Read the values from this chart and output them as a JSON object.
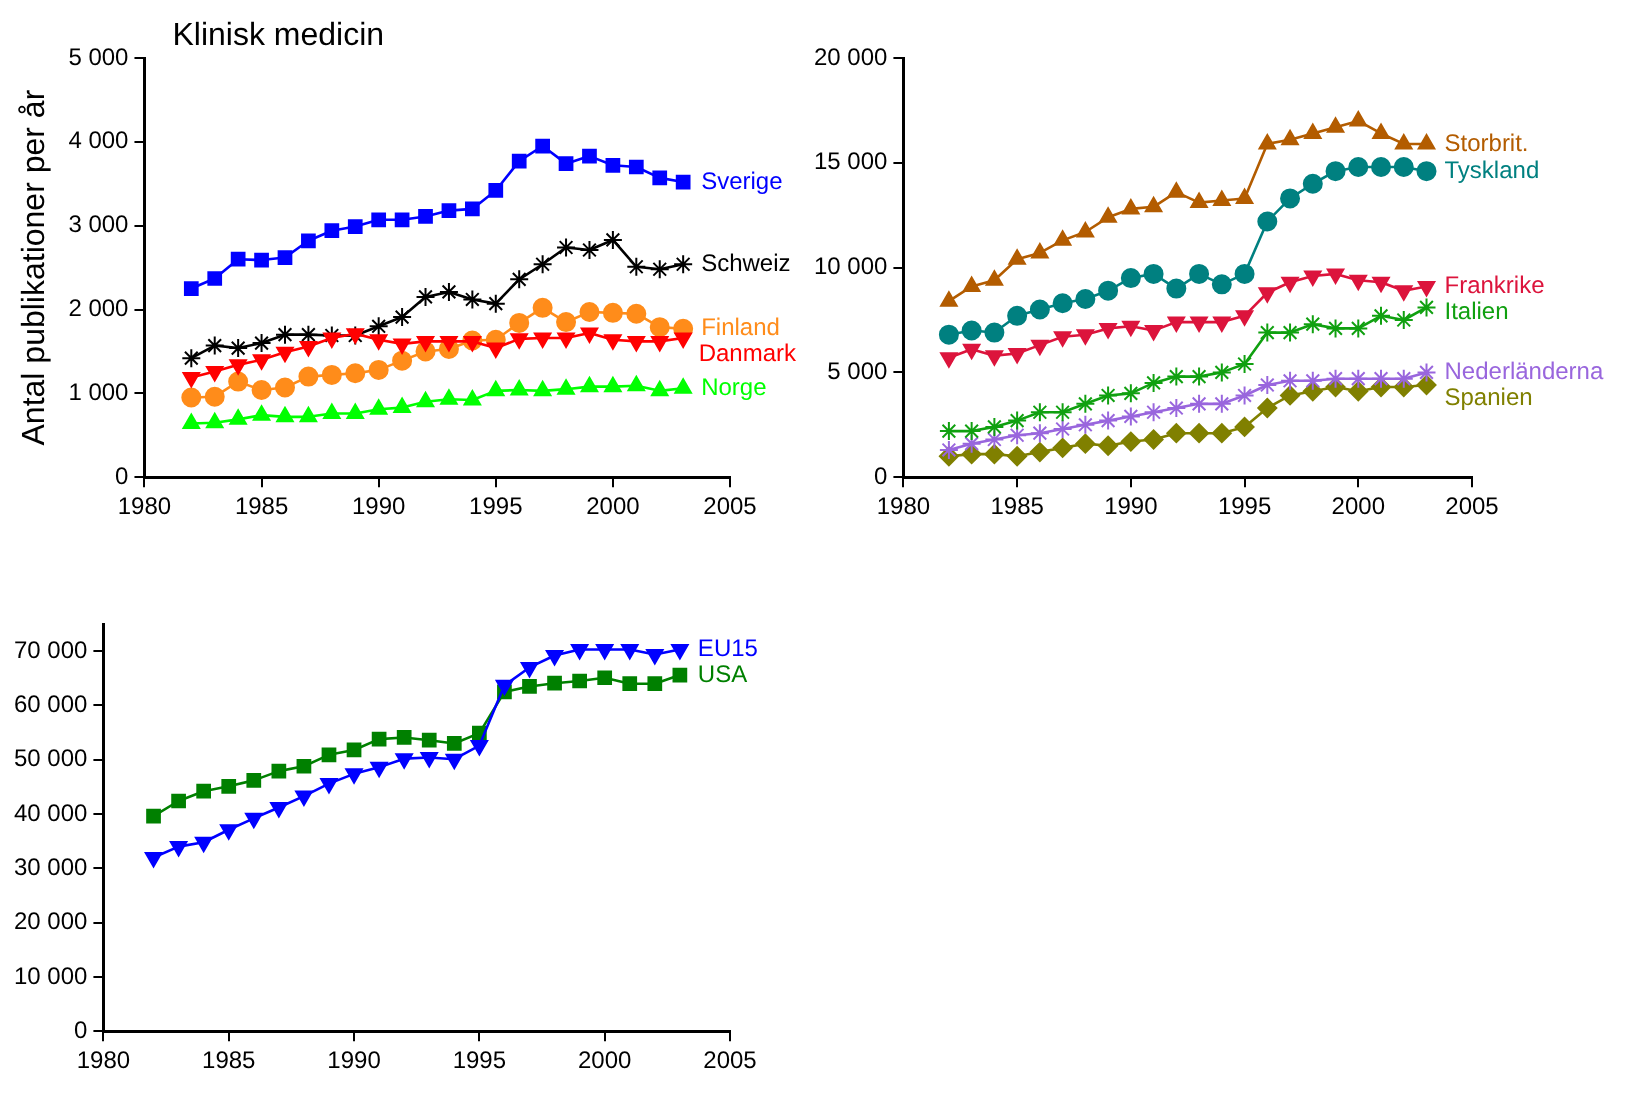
{
  "chart_data": [
    {
      "type": "line",
      "title": "Klinisk medicin",
      "ylabel": "Antal publikationer per år",
      "x": [
        1982,
        1983,
        1984,
        1985,
        1986,
        1987,
        1988,
        1989,
        1990,
        1991,
        1992,
        1993,
        1994,
        1995,
        1996,
        1997,
        1998,
        1999,
        2000,
        2001,
        2002,
        2003
      ],
      "xlim": [
        1980,
        2005
      ],
      "xticks": [
        1980,
        1985,
        1990,
        1995,
        2000,
        2005
      ],
      "ylim": [
        0,
        5000
      ],
      "yticks": [
        {
          "value": 0,
          "label": "0"
        },
        {
          "value": 1000,
          "label": "1 000"
        },
        {
          "value": 2000,
          "label": "2 000"
        },
        {
          "value": 3000,
          "label": "3 000"
        },
        {
          "value": 4000,
          "label": "4 000"
        },
        {
          "value": 5000,
          "label": "5 000"
        }
      ],
      "grid": false,
      "legend": false,
      "series": [
        {
          "name": "Sverige",
          "color": "#0000ff",
          "marker": "square",
          "values": [
            2250,
            2370,
            2600,
            2590,
            2620,
            2820,
            2940,
            2990,
            3070,
            3070,
            3110,
            3180,
            3200,
            3420,
            3770,
            3950,
            3740,
            3830,
            3720,
            3700,
            3570,
            3520
          ]
        },
        {
          "name": "Schweiz",
          "color": "#000000",
          "marker": "cross",
          "values": [
            1420,
            1570,
            1540,
            1600,
            1700,
            1700,
            1690,
            1690,
            1800,
            1910,
            2150,
            2210,
            2120,
            2070,
            2360,
            2540,
            2740,
            2710,
            2830,
            2510,
            2480,
            2540
          ]
        },
        {
          "name": "Finland",
          "color": "#ff8c1a",
          "marker": "circle",
          "values": [
            950,
            960,
            1140,
            1040,
            1070,
            1200,
            1220,
            1240,
            1280,
            1390,
            1500,
            1530,
            1630,
            1640,
            1840,
            2020,
            1850,
            1970,
            1960,
            1950,
            1790,
            1770
          ]
        },
        {
          "name": "Danmark",
          "color": "#ff0000",
          "marker": "triangle-down",
          "values": [
            1190,
            1260,
            1340,
            1400,
            1490,
            1560,
            1660,
            1710,
            1640,
            1590,
            1620,
            1620,
            1620,
            1540,
            1650,
            1660,
            1660,
            1720,
            1640,
            1620,
            1620,
            1660
          ]
        },
        {
          "name": "Norge",
          "color": "#00ff00",
          "marker": "triangle",
          "values": [
            640,
            650,
            690,
            740,
            720,
            720,
            760,
            760,
            810,
            830,
            900,
            930,
            920,
            1030,
            1040,
            1030,
            1050,
            1080,
            1080,
            1090,
            1030,
            1060
          ]
        }
      ]
    },
    {
      "type": "line",
      "x": [
        1982,
        1983,
        1984,
        1985,
        1986,
        1987,
        1988,
        1989,
        1990,
        1991,
        1992,
        1993,
        1994,
        1995,
        1996,
        1997,
        1998,
        1999,
        2000,
        2001,
        2002,
        2003
      ],
      "xlim": [
        1980,
        2005
      ],
      "xticks": [
        1980,
        1985,
        1990,
        1995,
        2000,
        2005
      ],
      "ylim": [
        0,
        20000
      ],
      "yticks": [
        {
          "value": 0,
          "label": "0"
        },
        {
          "value": 5000,
          "label": "5 000"
        },
        {
          "value": 10000,
          "label": "10 000"
        },
        {
          "value": 15000,
          "label": "15 000"
        },
        {
          "value": 20000,
          "label": "20 000"
        }
      ],
      "grid": false,
      "legend": false,
      "series": [
        {
          "name": "Storbrit.",
          "color": "#b35c00",
          "marker": "triangle",
          "values": [
            8400,
            9100,
            9400,
            10400,
            10700,
            11300,
            11700,
            12400,
            12800,
            12900,
            13600,
            13100,
            13200,
            13300,
            15900,
            16100,
            16400,
            16700,
            17000,
            16400,
            15900,
            15900
          ]
        },
        {
          "name": "Tyskland",
          "color": "#008080",
          "marker": "circle",
          "values": [
            6800,
            7000,
            6900,
            7700,
            8000,
            8300,
            8500,
            8900,
            9500,
            9700,
            9000,
            9700,
            9200,
            9700,
            12200,
            13300,
            14000,
            14600,
            14800,
            14800,
            14800,
            14600
          ]
        },
        {
          "name": "Frankrike",
          "color": "#dc143c",
          "marker": "triangle-down",
          "values": [
            5700,
            6100,
            5800,
            5900,
            6300,
            6700,
            6800,
            7100,
            7200,
            7000,
            7400,
            7400,
            7400,
            7700,
            8800,
            9300,
            9600,
            9700,
            9400,
            9300,
            8900,
            9100
          ]
        },
        {
          "name": "Italien",
          "color": "#10a010",
          "marker": "cross",
          "values": [
            2200,
            2200,
            2400,
            2700,
            3100,
            3100,
            3500,
            3900,
            4000,
            4500,
            4800,
            4800,
            5000,
            5400,
            6900,
            6900,
            7300,
            7100,
            7100,
            7700,
            7500,
            8100
          ]
        },
        {
          "name": "Nederländerna",
          "color": "#9966dd",
          "marker": "cross",
          "values": [
            1300,
            1600,
            1800,
            2000,
            2100,
            2300,
            2500,
            2700,
            2900,
            3100,
            3300,
            3500,
            3500,
            3900,
            4400,
            4600,
            4600,
            4700,
            4700,
            4700,
            4700,
            5000
          ]
        },
        {
          "name": "Spanien",
          "color": "#808000",
          "marker": "diamond",
          "values": [
            1000,
            1100,
            1100,
            1000,
            1200,
            1400,
            1600,
            1500,
            1700,
            1800,
            2100,
            2100,
            2100,
            2400,
            3300,
            3900,
            4100,
            4300,
            4100,
            4300,
            4300,
            4400
          ]
        }
      ]
    },
    {
      "type": "line",
      "x": [
        1982,
        1983,
        1984,
        1985,
        1986,
        1987,
        1988,
        1989,
        1990,
        1991,
        1992,
        1993,
        1994,
        1995,
        1996,
        1997,
        1998,
        1999,
        2000,
        2001,
        2002,
        2003
      ],
      "xlim": [
        1980,
        2005
      ],
      "xticks": [
        1980,
        1985,
        1990,
        1995,
        2000,
        2005
      ],
      "ylim": [
        0,
        75000
      ],
      "yticks": [
        {
          "value": 0,
          "label": "0"
        },
        {
          "value": 10000,
          "label": "10 000"
        },
        {
          "value": 20000,
          "label": "20 000"
        },
        {
          "value": 30000,
          "label": "30 000"
        },
        {
          "value": 40000,
          "label": "40 000"
        },
        {
          "value": 50000,
          "label": "50 000"
        },
        {
          "value": 60000,
          "label": "60 000"
        },
        {
          "value": 70000,
          "label": "70 000"
        }
      ],
      "grid": false,
      "legend": false,
      "series": [
        {
          "name": "EU15",
          "color": "#0000ff",
          "marker": "triangle-down",
          "values": [
            32000,
            34000,
            34800,
            37100,
            39200,
            41200,
            43300,
            45600,
            47400,
            48600,
            50200,
            50400,
            50100,
            52600,
            63700,
            67000,
            69200,
            70300,
            70300,
            70300,
            69400,
            70300
          ]
        },
        {
          "name": "USA",
          "color": "#008000",
          "marker": "square",
          "values": [
            39600,
            42400,
            44200,
            45100,
            46200,
            47900,
            48800,
            50900,
            51800,
            53800,
            54100,
            53600,
            53000,
            54900,
            62500,
            63500,
            64100,
            64500,
            65100,
            64000,
            64000,
            65600
          ]
        }
      ]
    }
  ]
}
